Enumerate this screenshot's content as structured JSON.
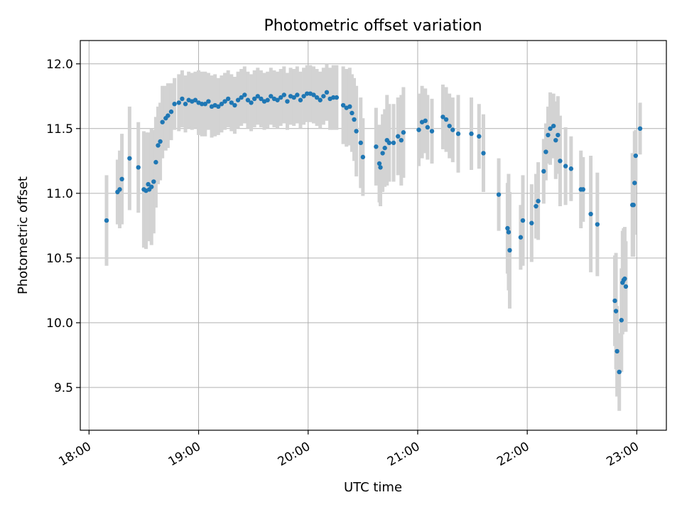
{
  "chart_data": {
    "type": "scatter",
    "title": "Photometric offset variation",
    "xlabel": "UTC time",
    "ylabel": "Photometric offset",
    "x_unit": "hours UTC",
    "xlim": [
      17.92,
      23.27
    ],
    "ylim": [
      9.17,
      12.18
    ],
    "x_ticks": [
      {
        "value": 18,
        "label": "18:00"
      },
      {
        "value": 19,
        "label": "19:00"
      },
      {
        "value": 20,
        "label": "20:00"
      },
      {
        "value": 21,
        "label": "21:00"
      },
      {
        "value": 22,
        "label": "22:00"
      },
      {
        "value": 23,
        "label": "23:00"
      }
    ],
    "y_ticks": [
      {
        "value": 9.5,
        "label": "9.5"
      },
      {
        "value": 10.0,
        "label": "10.0"
      },
      {
        "value": 10.5,
        "label": "10.5"
      },
      {
        "value": 11.0,
        "label": "11.0"
      },
      {
        "value": 11.5,
        "label": "11.5"
      },
      {
        "value": 12.0,
        "label": "12.0"
      }
    ],
    "grid": true,
    "colors": {
      "points": "#1f77b4",
      "errorbars": "#d3d3d3",
      "grid": "#b0b0b0"
    },
    "series": [
      {
        "x": [
          18.16,
          18.26,
          18.28,
          18.3,
          18.37,
          18.45,
          18.5,
          18.52,
          18.54,
          18.55,
          18.57,
          18.59,
          18.61,
          18.63,
          18.65,
          18.67,
          18.7,
          18.72,
          18.75,
          18.78,
          18.82,
          18.85,
          18.88,
          18.91,
          18.94,
          18.97,
          19.0,
          19.03,
          19.06,
          19.09,
          19.12,
          19.15,
          19.18,
          19.21,
          19.24,
          19.27,
          19.3,
          19.33,
          19.36,
          19.39,
          19.42,
          19.45,
          19.48,
          19.51,
          19.54,
          19.57,
          19.6,
          19.63,
          19.66,
          19.69,
          19.72,
          19.75,
          19.78,
          19.81,
          19.84,
          19.87,
          19.9,
          19.93,
          19.96,
          19.99,
          20.02,
          20.05,
          20.08,
          20.11,
          20.14,
          20.17,
          20.2,
          20.23,
          20.26,
          20.32,
          20.35,
          20.38,
          20.4,
          20.42,
          20.44,
          20.48,
          20.5,
          20.62,
          20.65,
          20.66,
          20.68,
          20.7,
          20.72,
          20.74,
          20.78,
          20.82,
          20.85,
          20.87,
          21.01,
          21.04,
          21.07,
          21.09,
          21.13,
          21.23,
          21.26,
          21.29,
          21.32,
          21.37,
          21.49,
          21.56,
          21.6,
          21.74,
          21.82,
          21.83,
          21.84,
          21.94,
          21.96,
          22.04,
          22.08,
          22.1,
          22.15,
          22.17,
          22.19,
          22.21,
          22.24,
          22.26,
          22.28,
          22.3,
          22.35,
          22.4,
          22.49,
          22.51,
          22.58,
          22.64,
          22.8,
          22.81,
          22.82,
          22.84,
          22.86,
          22.87,
          22.88,
          22.89,
          22.9,
          22.96,
          22.97,
          22.98,
          22.99,
          23.03
        ],
        "y": [
          10.79,
          11.01,
          11.03,
          11.11,
          11.27,
          11.2,
          11.03,
          11.02,
          11.07,
          11.03,
          11.05,
          11.09,
          11.24,
          11.37,
          11.4,
          11.55,
          11.58,
          11.6,
          11.63,
          11.69,
          11.7,
          11.73,
          11.69,
          11.72,
          11.71,
          11.72,
          11.7,
          11.69,
          11.69,
          11.71,
          11.67,
          11.68,
          11.67,
          11.69,
          11.71,
          11.73,
          11.7,
          11.68,
          11.72,
          11.74,
          11.76,
          11.72,
          11.7,
          11.73,
          11.75,
          11.73,
          11.71,
          11.72,
          11.75,
          11.73,
          11.72,
          11.74,
          11.76,
          11.71,
          11.75,
          11.74,
          11.76,
          11.72,
          11.75,
          11.77,
          11.77,
          11.76,
          11.74,
          11.72,
          11.75,
          11.78,
          11.73,
          11.74,
          11.74,
          11.68,
          11.66,
          11.67,
          11.62,
          11.57,
          11.48,
          11.39,
          11.28,
          11.36,
          11.23,
          11.2,
          11.31,
          11.35,
          11.41,
          11.39,
          11.39,
          11.44,
          11.41,
          11.47,
          11.49,
          11.55,
          11.56,
          11.51,
          11.48,
          11.59,
          11.57,
          11.52,
          11.49,
          11.46,
          11.46,
          11.44,
          11.31,
          10.99,
          10.73,
          10.7,
          10.56,
          10.66,
          10.79,
          10.77,
          10.9,
          10.94,
          11.17,
          11.32,
          11.45,
          11.5,
          11.52,
          11.41,
          11.45,
          11.25,
          11.21,
          11.19,
          11.03,
          11.03,
          10.84,
          10.76,
          10.17,
          10.09,
          9.78,
          9.62,
          10.02,
          10.31,
          10.33,
          10.34,
          10.28,
          10.91,
          10.91,
          11.08,
          11.29,
          11.5
        ],
        "yerr": [
          0.35,
          0.25,
          0.3,
          0.35,
          0.4,
          0.35,
          0.45,
          0.45,
          0.4,
          0.4,
          0.45,
          0.4,
          0.35,
          0.3,
          0.3,
          0.28,
          0.25,
          0.25,
          0.22,
          0.2,
          0.22,
          0.22,
          0.22,
          0.22,
          0.22,
          0.22,
          0.25,
          0.25,
          0.25,
          0.22,
          0.24,
          0.24,
          0.22,
          0.22,
          0.22,
          0.22,
          0.22,
          0.22,
          0.22,
          0.22,
          0.22,
          0.22,
          0.22,
          0.22,
          0.22,
          0.22,
          0.22,
          0.22,
          0.22,
          0.22,
          0.22,
          0.22,
          0.22,
          0.22,
          0.22,
          0.22,
          0.22,
          0.22,
          0.22,
          0.22,
          0.22,
          0.22,
          0.22,
          0.22,
          0.22,
          0.22,
          0.24,
          0.25,
          0.25,
          0.3,
          0.3,
          0.3,
          0.3,
          0.32,
          0.35,
          0.35,
          0.3,
          0.3,
          0.3,
          0.3,
          0.3,
          0.3,
          0.35,
          0.3,
          0.3,
          0.3,
          0.35,
          0.35,
          0.28,
          0.28,
          0.25,
          0.25,
          0.25,
          0.25,
          0.25,
          0.25,
          0.25,
          0.3,
          0.28,
          0.25,
          0.3,
          0.28,
          0.35,
          0.45,
          0.45,
          0.25,
          0.35,
          0.3,
          0.25,
          0.3,
          0.25,
          0.22,
          0.22,
          0.28,
          0.25,
          0.3,
          0.3,
          0.35,
          0.3,
          0.25,
          0.3,
          0.25,
          0.45,
          0.4,
          0.35,
          0.45,
          0.35,
          0.3,
          0.4,
          0.4,
          0.4,
          0.4,
          0.35,
          0.4,
          0.4,
          0.4,
          0.2,
          0.2
        ]
      }
    ]
  }
}
